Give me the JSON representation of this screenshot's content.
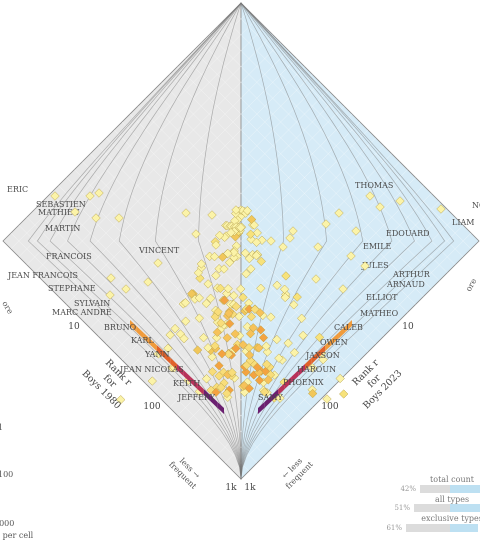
{
  "chart_data": {
    "type": "rank-divergence-diamond",
    "left_system": "Boys 1980",
    "right_system": "Boys 2023",
    "left_axis": {
      "line1": "Rank r",
      "line2": "for",
      "line3": "Boys 1980"
    },
    "right_axis": {
      "line1": "Rank r",
      "line2": "for",
      "line3": "Boys 2023"
    },
    "ticks": [
      {
        "label": "10",
        "value": 10
      },
      {
        "label": "100",
        "value": 100
      },
      {
        "label": "1k",
        "value": 1000
      }
    ],
    "less_frequent_left": "less →\nfrequent",
    "less_frequent_right": "← less\nfrequent",
    "left_names": [
      {
        "name": "ERIC",
        "rank_1980": 1,
        "rank_2023": 1000
      },
      {
        "name": "SEBASTIEN",
        "rank_1980": 3,
        "rank_2023": 1000
      },
      {
        "name": "MATHIEU",
        "rank_1980": 2,
        "rank_2023": 700
      },
      {
        "name": "MARTIN",
        "rank_1980": 4,
        "rank_2023": 600
      },
      {
        "name": "FRANCOIS",
        "rank_1980": 6,
        "rank_2023": 500
      },
      {
        "name": "VINCENT",
        "rank_1980": 8,
        "rank_2023": 90
      },
      {
        "name": "JEAN FRANCOIS",
        "rank_1980": 20,
        "rank_2023": 1000
      },
      {
        "name": "STEPHANE",
        "rank_1980": 12,
        "rank_2023": 700
      },
      {
        "name": "SYLVAIN",
        "rank_1980": 18,
        "rank_2023": 600
      },
      {
        "name": "MARC ANDRE",
        "rank_1980": 20,
        "rank_2023": 500
      },
      {
        "name": "BRUNO",
        "rank_1980": 40,
        "rank_2023": 400
      },
      {
        "name": "KARL",
        "rank_1980": 55,
        "rank_2023": 350
      },
      {
        "name": "YANN",
        "rank_1980": 70,
        "rank_2023": 320
      },
      {
        "name": "JEAN NICOLAS",
        "rank_1980": 90,
        "rank_2023": 1000
      },
      {
        "name": "KEITH",
        "rank_1980": 150,
        "rank_2023": 300
      },
      {
        "name": "JEFFERY",
        "rank_1980": 250,
        "rank_2023": 450
      }
    ],
    "right_names": [
      {
        "name": "NO",
        "rank_1980": 1000,
        "rank_2023": 1
      },
      {
        "name": "LIAM",
        "rank_1980": 1000,
        "rank_2023": 2
      },
      {
        "name": "THOMAS",
        "rank_1980": 20,
        "rank_2023": 3
      },
      {
        "name": "EDOUARD",
        "rank_1980": 500,
        "rank_2023": 5
      },
      {
        "name": "EMILE",
        "rank_1980": 300,
        "rank_2023": 8
      },
      {
        "name": "JULES",
        "rank_1980": 600,
        "rank_2023": 8
      },
      {
        "name": "ARTHUR",
        "rank_1980": 1000,
        "rank_2023": 9
      },
      {
        "name": "ARNAUD",
        "rank_1980": 100,
        "rank_2023": 10
      },
      {
        "name": "ELLIOT",
        "rank_1980": 500,
        "rank_2023": 13
      },
      {
        "name": "MATHEO",
        "rank_1980": 1000,
        "rank_2023": 20
      },
      {
        "name": "CALEB",
        "rank_1980": 1000,
        "rank_2023": 40
      },
      {
        "name": "OWEN",
        "rank_1980": 1000,
        "rank_2023": 55
      },
      {
        "name": "JAXSON",
        "rank_1980": 1000,
        "rank_2023": 70
      },
      {
        "name": "HAROUN",
        "rank_1980": 1000,
        "rank_2023": 90
      },
      {
        "name": "PHOENIX",
        "rank_1980": 1000,
        "rank_2023": 140
      },
      {
        "name": "SAMY",
        "rank_1980": 1000,
        "rank_2023": 250
      }
    ],
    "left_cut_label": "ore",
    "right_cut_label": "ore",
    "cbar": {
      "tick_1": "1",
      "tick_2": "100",
      "tick_3": "1000",
      "label": "s per cell"
    },
    "balance": {
      "title": "total count",
      "rows": [
        {
          "label": "all types",
          "pct": "42%",
          "left": 0.42,
          "right": 0.58
        },
        {
          "label": "exclusive types",
          "pct": "51%",
          "left": 0.51,
          "right": 0.49
        },
        {
          "label": "",
          "pct": "61%",
          "left": 0.61,
          "right": 0.39
        }
      ]
    },
    "colors": {
      "left_bg": "#e8e8e8",
      "right_bg": "#d6ebf7",
      "cell_light": "#fbf3a8",
      "cell_mid": "#f3a341",
      "cell_dark": "#6a1f70",
      "balance_bar_left": "#dcdcdc",
      "balance_bar_right": "#bde0f2"
    }
  }
}
